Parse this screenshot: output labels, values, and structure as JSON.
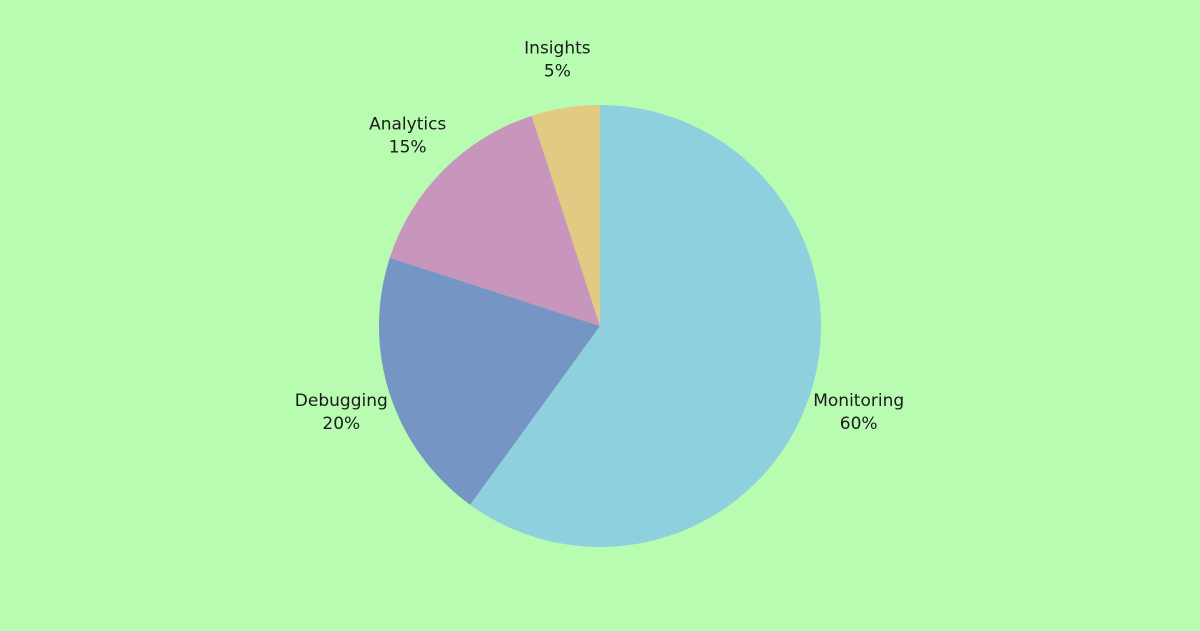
{
  "background_color": "#b8fcb2",
  "chart_data": {
    "type": "pie",
    "title": "",
    "slices": [
      {
        "label": "Monitoring",
        "value": 60,
        "value_label": "60%",
        "color": "#8fd0de"
      },
      {
        "label": "Debugging",
        "value": 20,
        "value_label": "20%",
        "color": "#7596c5"
      },
      {
        "label": "Analytics",
        "value": 15,
        "value_label": "15%",
        "color": "#c895bc"
      },
      {
        "label": "Insights",
        "value": 5,
        "value_label": "5%",
        "color": "#e3ca82"
      }
    ],
    "start_angle": "12 o'clock",
    "direction": "clockwise",
    "legend": "none"
  }
}
